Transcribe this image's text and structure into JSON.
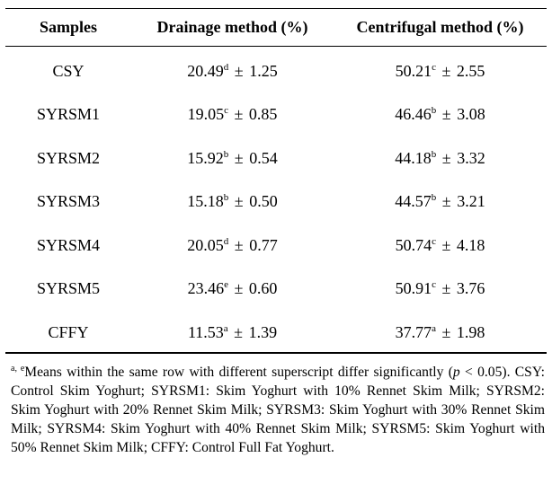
{
  "table": {
    "headers": [
      "Samples",
      "Drainage method (%)",
      "Centrifugal method (%)"
    ],
    "rows": [
      {
        "sample": "CSY",
        "drainage": {
          "value": "20.49",
          "sup": "d",
          "sd": "1.25"
        },
        "centrifugal": {
          "value": "50.21",
          "sup": "c",
          "sd": "2.55"
        }
      },
      {
        "sample": "SYRSM1",
        "drainage": {
          "value": "19.05",
          "sup": "c",
          "sd": "0.85"
        },
        "centrifugal": {
          "value": "46.46",
          "sup": "b",
          "sd": "3.08"
        }
      },
      {
        "sample": "SYRSM2",
        "drainage": {
          "value": "15.92",
          "sup": "b",
          "sd": "0.54"
        },
        "centrifugal": {
          "value": "44.18",
          "sup": "b",
          "sd": "3.32"
        }
      },
      {
        "sample": "SYRSM3",
        "drainage": {
          "value": "15.18",
          "sup": "b",
          "sd": "0.50"
        },
        "centrifugal": {
          "value": "44.57",
          "sup": "b",
          "sd": "3.21"
        }
      },
      {
        "sample": "SYRSM4",
        "drainage": {
          "value": "20.05",
          "sup": "d",
          "sd": "0.77"
        },
        "centrifugal": {
          "value": "50.74",
          "sup": "c",
          "sd": "4.18"
        }
      },
      {
        "sample": "SYRSM5",
        "drainage": {
          "value": "23.46",
          "sup": "e",
          "sd": "0.60"
        },
        "centrifugal": {
          "value": "50.91",
          "sup": "c",
          "sd": "3.76"
        }
      },
      {
        "sample": "CFFY",
        "drainage": {
          "value": "11.53",
          "sup": "a",
          "sd": "1.39"
        },
        "centrifugal": {
          "value": "37.77",
          "sup": "a",
          "sd": "1.98"
        }
      }
    ],
    "pm_symbol": "±"
  },
  "footnote": {
    "sup": "a, e",
    "text_before_p": "Means within the same row with different superscript differ significantly (",
    "p_italic": "p",
    "text_after_p": " < 0.05). CSY: Control Skim Yoghurt; SYRSM1: Skim Yoghurt with 10% Rennet Skim Milk; SYRSM2: Skim Yoghurt with 20% Rennet Skim Milk; SYRSM3: Skim Yoghurt with 30% Rennet Skim Milk; SYRSM4: Skim Yoghurt with 40% Rennet Skim Milk; SYRSM5: Skim Yoghurt with 50% Rennet Skim Milk; CFFY: Control Full Fat Yoghurt."
  }
}
